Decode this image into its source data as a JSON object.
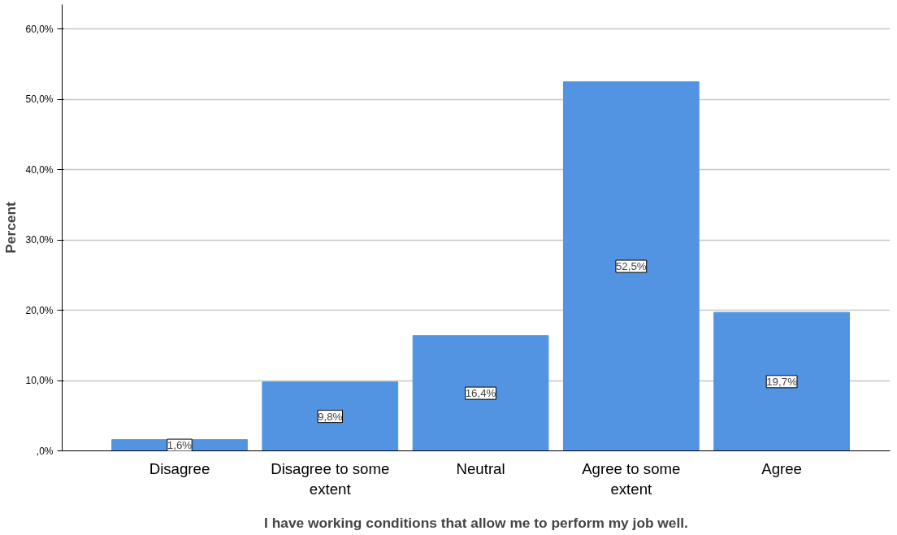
{
  "chart_data": {
    "type": "bar",
    "xlabel": "I have working conditions that allow me to perform my job well.",
    "ylabel": "Percent",
    "categories": [
      "Disagree",
      "Disagree to some extent",
      "Neutral",
      "Agree to some extent",
      "Agree"
    ],
    "values": [
      1.6,
      9.8,
      16.4,
      52.5,
      19.7
    ],
    "value_labels": [
      "1,6%",
      "9,8%",
      "16,4%",
      "52,5%",
      "19,7%"
    ],
    "color": "#5294e2",
    "ylim": [
      0,
      63.5
    ],
    "yticks": [
      {
        "value": 0,
        "label": ",0%"
      },
      {
        "value": 10,
        "label": "10,0%"
      },
      {
        "value": 20,
        "label": "20,0%"
      },
      {
        "value": 30,
        "label": "30,0%"
      },
      {
        "value": 40,
        "label": "40,0%"
      },
      {
        "value": 50,
        "label": "50,0%"
      },
      {
        "value": 60,
        "label": "60,0%"
      }
    ],
    "grid": "y"
  }
}
